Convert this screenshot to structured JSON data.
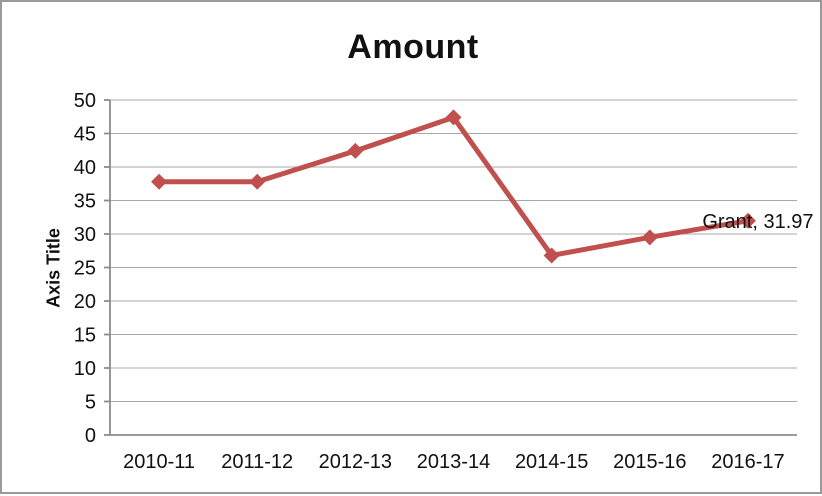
{
  "window": {
    "background": "#FFFFFF",
    "border_color": "#9A9A9A"
  },
  "chart_data": {
    "type": "line",
    "title": "Amount",
    "xlabel": "",
    "ylabel": "Axis Title",
    "categories": [
      "2010-11",
      "2011-12",
      "2012-13",
      "2013-14",
      "2014-15",
      "2015-16",
      "2016-17"
    ],
    "series": [
      {
        "name": "Grant",
        "values": [
          37.8,
          37.8,
          42.4,
          47.4,
          26.8,
          29.5,
          31.97
        ]
      }
    ],
    "ylim": [
      0,
      50
    ],
    "ytick_step": 5,
    "yticks": [
      0,
      5,
      10,
      15,
      20,
      25,
      30,
      35,
      40,
      45,
      50
    ],
    "grid": true,
    "legend": "none",
    "marker_shape": "diamond",
    "data_labels": [
      {
        "series": "Grant",
        "point_index": 6,
        "text": "Grant, 31.97"
      }
    ],
    "colors": {
      "line": "#C0504D",
      "marker": "#C0504D",
      "grid": "#A8A8A8",
      "axis": "#8C8C8C",
      "text": "#111111",
      "title": "#111111",
      "background": "#FFFFFF"
    }
  }
}
